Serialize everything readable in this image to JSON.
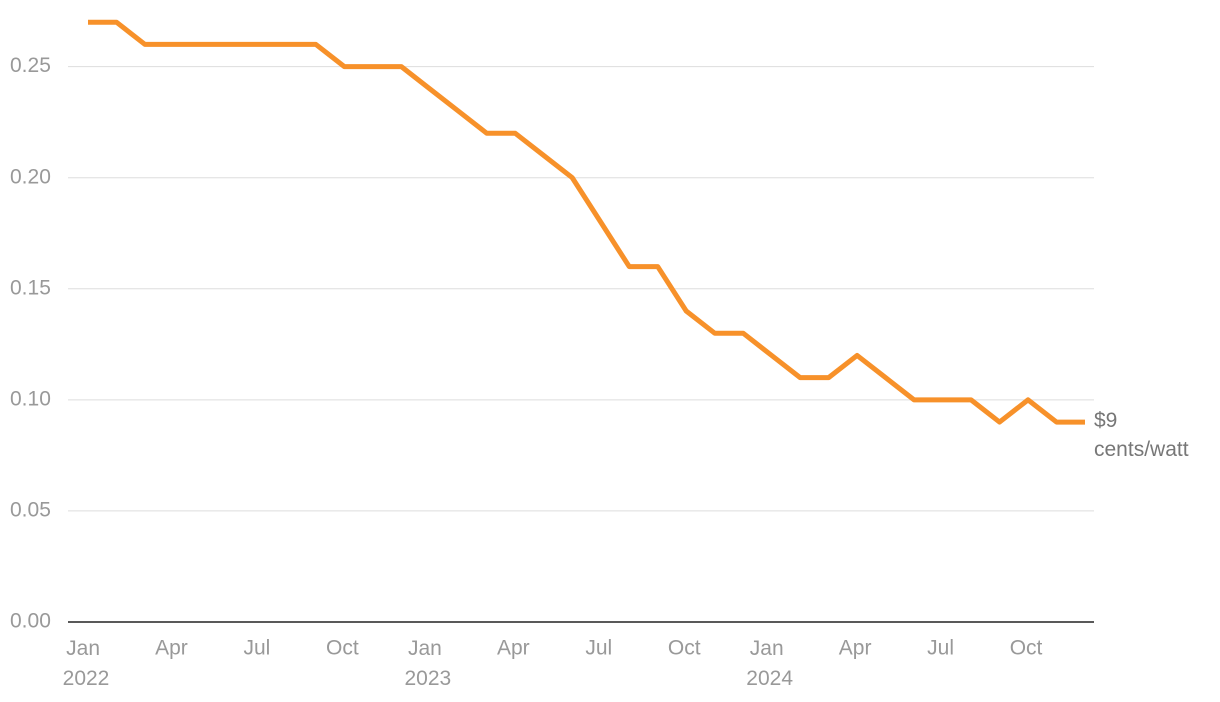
{
  "chart_data": {
    "type": "line",
    "x": [
      "2022-01",
      "2022-02",
      "2022-03",
      "2022-04",
      "2022-05",
      "2022-06",
      "2022-07",
      "2022-08",
      "2022-09",
      "2022-10",
      "2022-11",
      "2022-12",
      "2023-01",
      "2023-02",
      "2023-03",
      "2023-04",
      "2023-05",
      "2023-06",
      "2023-07",
      "2023-08",
      "2023-09",
      "2023-10",
      "2023-11",
      "2023-12",
      "2024-01",
      "2024-02",
      "2024-03",
      "2024-04",
      "2024-05",
      "2024-06",
      "2024-07",
      "2024-08",
      "2024-09",
      "2024-10",
      "2024-11",
      "2024-12"
    ],
    "series": [
      {
        "color": "#f7912a",
        "values": [
          0.27,
          0.27,
          0.26,
          0.26,
          0.26,
          0.26,
          0.26,
          0.26,
          0.26,
          0.25,
          0.25,
          0.25,
          0.24,
          0.23,
          0.22,
          0.22,
          0.21,
          0.2,
          0.18,
          0.16,
          0.16,
          0.14,
          0.13,
          0.13,
          0.12,
          0.11,
          0.11,
          0.12,
          0.11,
          0.1,
          0.1,
          0.1,
          0.09,
          0.1,
          0.09,
          0.09
        ]
      }
    ],
    "xlim": [
      "2022-01",
      "2024-12"
    ],
    "xticks": [
      {
        "value": "2022-01",
        "label": "Jan 2022"
      },
      {
        "value": "2022-04",
        "label": "Apr"
      },
      {
        "value": "2022-07",
        "label": "Jul"
      },
      {
        "value": "2022-10",
        "label": "Oct"
      },
      {
        "value": "2023-01",
        "label": "Jan 2023"
      },
      {
        "value": "2023-04",
        "label": "Apr"
      },
      {
        "value": "2023-07",
        "label": "Jul"
      },
      {
        "value": "2023-10",
        "label": "Oct"
      },
      {
        "value": "2024-01",
        "label": "Jan 2024"
      },
      {
        "value": "2024-04",
        "label": "Apr"
      },
      {
        "value": "2024-07",
        "label": "Jul"
      },
      {
        "value": "2024-10",
        "label": "Oct"
      }
    ],
    "ylim": [
      0,
      0.28
    ],
    "yticks": [
      {
        "value": 0,
        "label": "0.00"
      },
      {
        "value": 0.05,
        "label": "0.05"
      },
      {
        "value": 0.1,
        "label": "0.10"
      },
      {
        "value": 0.15,
        "label": "0.15"
      },
      {
        "value": 0.2,
        "label": "0.20"
      },
      {
        "value": 0.25,
        "label": "0.25"
      }
    ],
    "grid": true,
    "annotation": "$9 cents/watt"
  }
}
